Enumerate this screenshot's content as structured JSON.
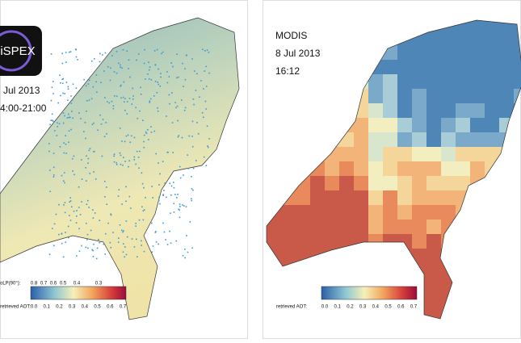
{
  "panels": [
    {
      "logo": "iSPEX",
      "date": "Jul 2013",
      "time": "4:00-21:00",
      "dolp_label": "oLP(90°):",
      "dolp_ticks": [
        "0.8",
        "0.7",
        "0.6",
        "0.5",
        "0.4",
        "0.3"
      ],
      "aot_label": "retrieved AOT:",
      "aot_ticks": [
        "0.0",
        "0.1",
        "0.2",
        "0.3",
        "0.4",
        "0.5",
        "0.6",
        "0.7"
      ]
    },
    {
      "source": "MODIS",
      "date": "8 Jul 2013",
      "time": "16:12",
      "aot_label": "retrieved AOT:",
      "aot_ticks": [
        "0.0",
        "0.1",
        "0.2",
        "0.3",
        "0.4",
        "0.5",
        "0.6",
        "0.7"
      ]
    }
  ]
}
